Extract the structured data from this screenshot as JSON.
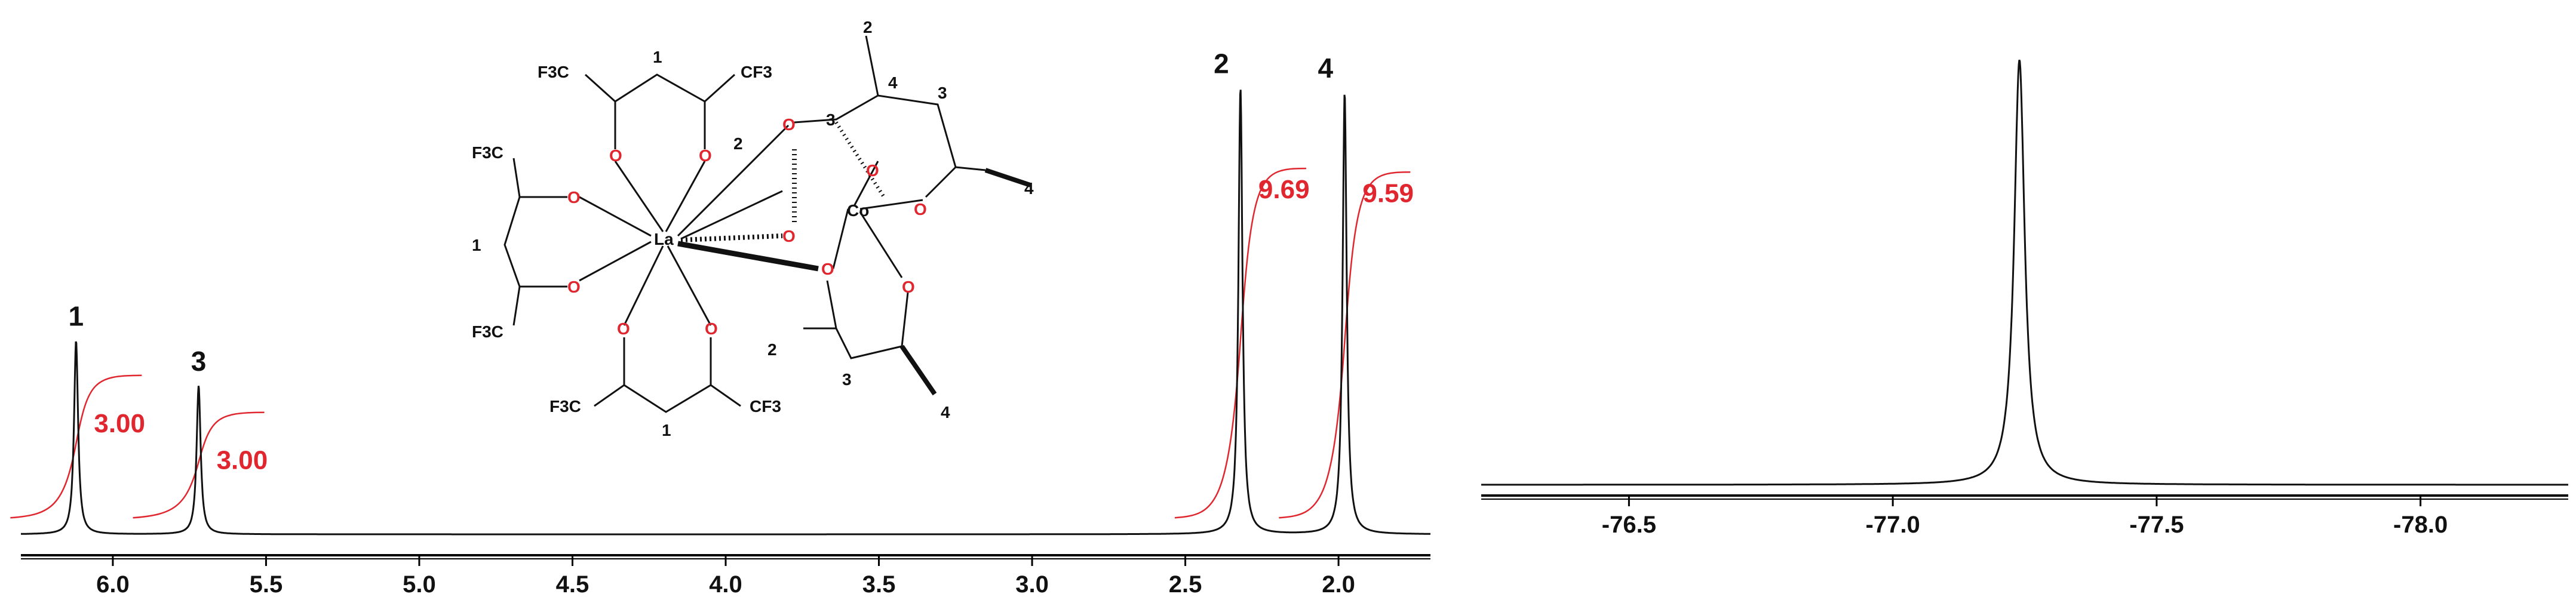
{
  "chart_data": [
    {
      "type": "line",
      "title": "",
      "xlabel": "",
      "ylabel": "",
      "x_reversed": true,
      "xlim": [
        6.3,
        1.7
      ],
      "ylim": [
        0,
        1
      ],
      "grid": false,
      "x_ticks": [
        "6.0",
        "5.5",
        "5.0",
        "4.5",
        "4.0",
        "3.5",
        "3.0",
        "2.5",
        "2.0"
      ],
      "x_tick_values": [
        6.0,
        5.5,
        5.0,
        4.5,
        4.0,
        3.5,
        3.0,
        2.5,
        2.0
      ],
      "peaks": [
        {
          "label": "1",
          "x": 6.12,
          "height": 0.43,
          "width": 0.008
        },
        {
          "label": "3",
          "x": 5.72,
          "height": 0.33,
          "width": 0.008
        },
        {
          "label": "2",
          "x": 2.32,
          "height": 0.99,
          "width": 0.008
        },
        {
          "label": "4",
          "x": 1.98,
          "height": 0.98,
          "width": 0.008
        }
      ],
      "integrals": [
        {
          "peak": "1",
          "value": "3.00"
        },
        {
          "peak": "3",
          "value": "3.00"
        },
        {
          "peak": "2",
          "value": "9.69"
        },
        {
          "peak": "4",
          "value": "9.59"
        }
      ],
      "colors": {
        "spectrum": "#111111",
        "integral": "#e0262e"
      }
    },
    {
      "type": "line",
      "title": "",
      "xlabel": "",
      "ylabel": "",
      "x_reversed": true,
      "xlim": [
        -76.22,
        -78.28
      ],
      "ylim": [
        0,
        1
      ],
      "grid": false,
      "x_ticks": [
        "-76.5",
        "-77.0",
        "-77.5",
        "-78.0"
      ],
      "x_tick_values": [
        -76.5,
        -77.0,
        -77.5,
        -78.0
      ],
      "peaks": [
        {
          "label": "",
          "x": -77.24,
          "height": 1.0,
          "width": 0.012
        }
      ],
      "colors": {
        "spectrum": "#111111"
      }
    }
  ],
  "structure": {
    "metals": [
      "La",
      "Co"
    ],
    "oxygen": "O",
    "cf3_left": "F3C",
    "cf3_right": "CF3",
    "position_labels": [
      "1",
      "1",
      "1",
      "2",
      "2",
      "2",
      "3",
      "3",
      "3",
      "4",
      "4",
      "4"
    ]
  }
}
